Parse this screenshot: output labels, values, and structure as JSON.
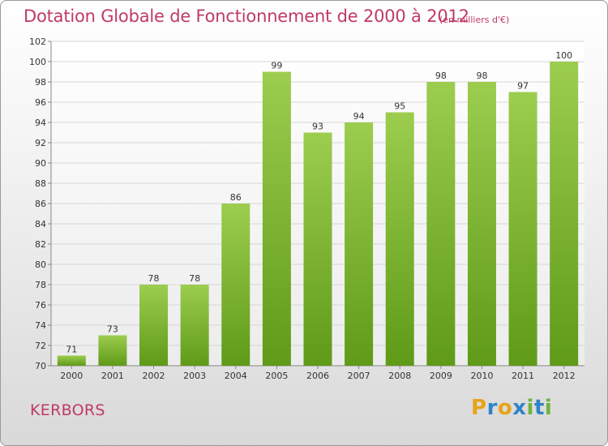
{
  "header": {
    "title": "Dotation Globale de Fonctionnement de 2000 à 2012",
    "unit": "(en milliers d'€)"
  },
  "commune": "KERBORS",
  "logo": {
    "letters": [
      "P",
      "r",
      "o",
      "x",
      "i",
      "t",
      "i"
    ],
    "colors": [
      "#e8a317",
      "#2f84c8",
      "#e8a317",
      "#2f84c8",
      "#6db33f",
      "#2f84c8",
      "#6db33f"
    ]
  },
  "chart_data": {
    "type": "bar",
    "categories": [
      "2000",
      "2001",
      "2002",
      "2003",
      "2004",
      "2005",
      "2006",
      "2007",
      "2008",
      "2009",
      "2010",
      "2011",
      "2012"
    ],
    "values": [
      71,
      73,
      78,
      78,
      86,
      99,
      93,
      94,
      95,
      98,
      98,
      97,
      100
    ],
    "title": "Dotation Globale de Fonctionnement de 2000 à 2012",
    "unit": "(en milliers d'€)",
    "ylim": [
      70,
      102
    ],
    "yticks": [
      70,
      72,
      74,
      76,
      78,
      80,
      82,
      84,
      86,
      88,
      90,
      92,
      94,
      96,
      98,
      100,
      102
    ],
    "grid": true,
    "bar_color_top": "#9ccd4f",
    "bar_color_bottom": "#5f9a18"
  }
}
